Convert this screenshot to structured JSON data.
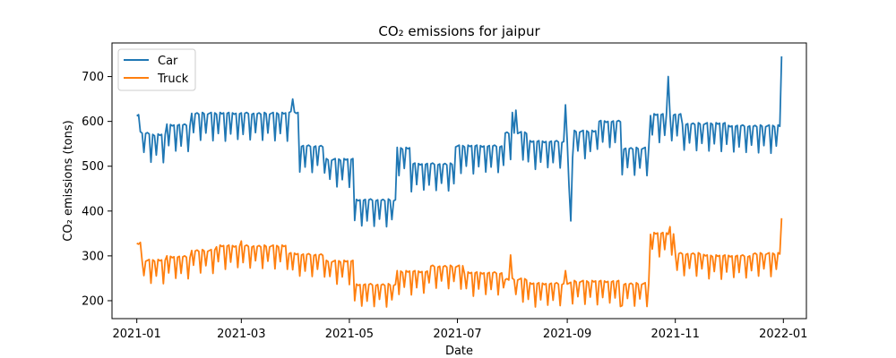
{
  "chart_data": {
    "type": "line",
    "title": "CO₂ emissions for jaipur",
    "xlabel": "Date",
    "ylabel": "CO₂ emissions (tons)",
    "xlim": [
      "2020-12-18",
      "2022-01-14"
    ],
    "ylim": [
      160,
      775
    ],
    "xticks": [
      {
        "label": "2021-01",
        "date": "2021-01-01"
      },
      {
        "label": "2021-03",
        "date": "2021-03-01"
      },
      {
        "label": "2021-05",
        "date": "2021-05-01"
      },
      {
        "label": "2021-07",
        "date": "2021-07-01"
      },
      {
        "label": "2021-09",
        "date": "2021-09-01"
      },
      {
        "label": "2021-11",
        "date": "2021-11-01"
      },
      {
        "label": "2022-01",
        "date": "2022-01-01"
      }
    ],
    "yticks": [
      200,
      300,
      400,
      500,
      600,
      700
    ],
    "legend_position": "top-left",
    "series": [
      {
        "name": "Car",
        "color": "#1f77b4",
        "weekly_pattern": [
          0,
          -60,
          0,
          0,
          -45,
          0,
          0
        ],
        "segments": [
          {
            "start": "2021-01-01",
            "end": "2021-01-08",
            "level": 575
          },
          {
            "start": "2021-01-08",
            "end": "2021-01-18",
            "level": 570
          },
          {
            "start": "2021-01-18",
            "end": "2021-02-01",
            "level": 592
          },
          {
            "start": "2021-02-01",
            "end": "2021-03-28",
            "level": 618
          },
          {
            "start": "2021-03-28",
            "end": "2021-04-03",
            "level": 620
          },
          {
            "start": "2021-04-03",
            "end": "2021-04-18",
            "level": 545
          },
          {
            "start": "2021-04-18",
            "end": "2021-05-04",
            "level": 515
          },
          {
            "start": "2021-05-04",
            "end": "2021-05-28",
            "level": 425
          },
          {
            "start": "2021-05-28",
            "end": "2021-06-05",
            "level": 540
          },
          {
            "start": "2021-06-05",
            "end": "2021-06-30",
            "level": 505
          },
          {
            "start": "2021-06-30",
            "end": "2021-07-28",
            "level": 545
          },
          {
            "start": "2021-07-28",
            "end": "2021-08-10",
            "level": 575
          },
          {
            "start": "2021-08-10",
            "end": "2021-09-03",
            "level": 555
          },
          {
            "start": "2021-09-03",
            "end": "2021-09-18",
            "level": 578
          },
          {
            "start": "2021-09-18",
            "end": "2021-10-02",
            "level": 600
          },
          {
            "start": "2021-10-02",
            "end": "2021-10-18",
            "level": 540
          },
          {
            "start": "2021-10-18",
            "end": "2021-11-05",
            "level": 615
          },
          {
            "start": "2021-11-05",
            "end": "2021-12-01",
            "level": 595
          },
          {
            "start": "2021-12-01",
            "end": "2021-12-31",
            "level": 590
          }
        ],
        "overrides": [
          {
            "date": "2021-01-01",
            "value": 612
          },
          {
            "date": "2021-01-02",
            "value": 615
          },
          {
            "date": "2021-03-30",
            "value": 650
          },
          {
            "date": "2021-08-01",
            "value": 620
          },
          {
            "date": "2021-08-03",
            "value": 625
          },
          {
            "date": "2021-08-31",
            "value": 637
          },
          {
            "date": "2021-09-02",
            "value": 455
          },
          {
            "date": "2021-09-03",
            "value": 378
          },
          {
            "date": "2021-10-28",
            "value": 700
          },
          {
            "date": "2021-12-31",
            "value": 745
          }
        ]
      },
      {
        "name": "Truck",
        "color": "#ff7f0e",
        "weekly_pattern": [
          0,
          -50,
          0,
          0,
          -35,
          0,
          0
        ],
        "segments": [
          {
            "start": "2021-01-01",
            "end": "2021-01-04",
            "level": 328
          },
          {
            "start": "2021-01-04",
            "end": "2021-01-18",
            "level": 290
          },
          {
            "start": "2021-01-18",
            "end": "2021-02-01",
            "level": 298
          },
          {
            "start": "2021-02-01",
            "end": "2021-02-15",
            "level": 312
          },
          {
            "start": "2021-02-15",
            "end": "2021-03-28",
            "level": 322
          },
          {
            "start": "2021-03-28",
            "end": "2021-04-03",
            "level": 305
          },
          {
            "start": "2021-04-03",
            "end": "2021-04-18",
            "level": 303
          },
          {
            "start": "2021-04-18",
            "end": "2021-05-04",
            "level": 288
          },
          {
            "start": "2021-05-04",
            "end": "2021-05-28",
            "level": 236
          },
          {
            "start": "2021-05-28",
            "end": "2021-06-15",
            "level": 265
          },
          {
            "start": "2021-06-15",
            "end": "2021-07-05",
            "level": 277
          },
          {
            "start": "2021-07-05",
            "end": "2021-07-28",
            "level": 262
          },
          {
            "start": "2021-07-28",
            "end": "2021-08-10",
            "level": 248
          },
          {
            "start": "2021-08-10",
            "end": "2021-09-03",
            "level": 238
          },
          {
            "start": "2021-09-03",
            "end": "2021-10-02",
            "level": 243
          },
          {
            "start": "2021-10-02",
            "end": "2021-10-18",
            "level": 238
          },
          {
            "start": "2021-10-18",
            "end": "2021-11-01",
            "level": 350
          },
          {
            "start": "2021-11-01",
            "end": "2021-11-18",
            "level": 305
          },
          {
            "start": "2021-11-18",
            "end": "2021-12-15",
            "level": 300
          },
          {
            "start": "2021-12-15",
            "end": "2021-12-31",
            "level": 305
          }
        ],
        "overrides": [
          {
            "date": "2021-01-01",
            "value": 328
          },
          {
            "date": "2021-01-02",
            "value": 326
          },
          {
            "date": "2021-03-01",
            "value": 333
          },
          {
            "date": "2021-07-31",
            "value": 302
          },
          {
            "date": "2021-08-31",
            "value": 267
          },
          {
            "date": "2021-10-01",
            "value": 187
          },
          {
            "date": "2021-10-29",
            "value": 365
          },
          {
            "date": "2021-12-31",
            "value": 384
          }
        ]
      }
    ]
  }
}
